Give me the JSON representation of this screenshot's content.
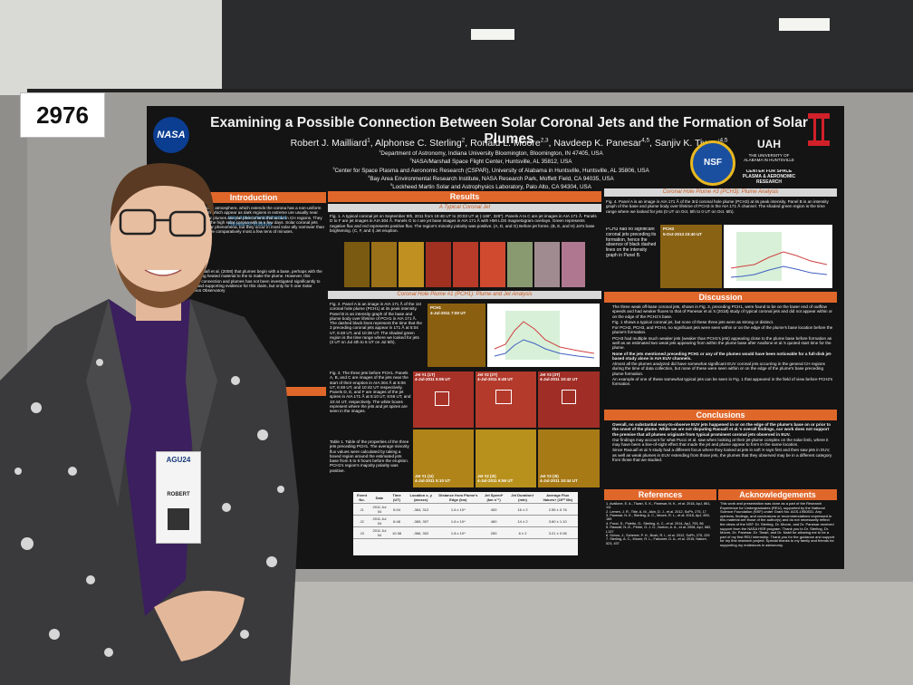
{
  "booth_number": "2976",
  "poster": {
    "title": "Examining a Possible Connection Between Solar Coronal Jets and the Formation of Solar Plumes",
    "authors": [
      {
        "name": "Robert J. Mailliard",
        "sup": "1"
      },
      {
        "name": "Alphonse C. Sterling",
        "sup": "2"
      },
      {
        "name": "Ronald L. Moore",
        "sup": "2,3"
      },
      {
        "name": "Navdeep K. Panesar",
        "sup": "4,5"
      },
      {
        "name": "Sanjiv K. Tiwari",
        "sup": "4,5"
      }
    ],
    "affiliations": [
      {
        "sup": "1",
        "text": "Department of Astronomy, Indiana University Bloomington, Bloomington, IN 47405, USA"
      },
      {
        "sup": "2",
        "text": "NASA/Marshall Space Flight Center, Huntsville, AL 35812, USA"
      },
      {
        "sup": "3",
        "text": "Center for Space Plasma and Aeronomic Research (CSPAR), University of Alabama in Huntsville, Huntsville, AL 35806, USA"
      },
      {
        "sup": "4",
        "text": "Bay Area Environmental Research Institute, NASA Research Park, Moffett Field, CA 94035, USA"
      },
      {
        "sup": "5",
        "text": "Lockheed Martin Solar and Astrophysics Laboratory, Palo Alto, CA 94304, USA"
      }
    ],
    "logos": {
      "nasa": "NASA",
      "baeri": "Bay Area Environmental Research Institute",
      "nsf": "NSF",
      "uah": "UAH",
      "uah_sub": "THE UNIVERSITY OF ALABAMA IN HUNTSVILLE",
      "cspar": "CENTER FOR SPACE PLASMA & AERONOMIC RESEARCH"
    },
    "introduction": {
      "heading": "Introduction",
      "text": "layer of the solar atmosphere, which extends the corona has a non-uniform structure which which appear as dark regions in extreme ure usually near the poles. Solar plumes are olar phenomena that occur in CH regions. They extending into the high solar corona with to a few days. Solar coronal jets are also ed solar phenomena, but they occur in most solar ally narrower than plumes and have comparatively most a few tens of minutes.",
      "text2": "ted by Raouafi et al. (2008) that plumes begin with a base, perhaps with the jet supplying heated material to the to make the plume. However, this proposed connection and plumes has not been investigated significantly to date. found supporting evidence for this claim, but only for h one Solar Dynamics Observatory"
    },
    "results": {
      "heading": "Results",
      "typical_jet": {
        "heading": "A Typical Coronal Jet",
        "caption": "Fig. 1. A typical coronal jet on September 8th, 2011 from 19:48 UT to 20:02 UT at (-166\", 326\"). Panels A to C are jet images in AIA 171 Å. Panels D to F are jet images in AIA 304 Å. Panels G to I are jet base images in AIA 171 Å with HMI LOS magnetogram overlays. Green represents negative flux and red represents positive flux. The region's minority polarity was positive. (A, D, and G) Before jet forms. (B, E, and H) Jet's base brightening. (C, F, and I) Jet eruption."
      },
      "pch1": {
        "heading": "Coronal Hole Plume #1 (PCH1): Plume and Jet Analysis",
        "fig2_caption": "Fig. 2. Panel A is an image in AIA 171 Å of the 1st coronal hole plume (PCH1) at its peak intensity. Panel B is an intensity graph of the base and plume body over lifetime of PCH1 in AIA 171 Å. The dashed black lines represent the time that the 3 preceding coronal jets appear in 171 Å at 5:04 UT, 6:48 UT, and 10:38 UT. The shaded green region is the time range where we looked for jets (3 UT on Jul 4th to 5 UT on Jul 5th).",
        "image_label": "PCH1",
        "image_time": "4-Jul-2011 7:00 UT",
        "fig3_caption": "Fig. 3. The three jets before PCH1. Panels A, B, and C are images of the jets near the start of their eruption in AIA 304 Å at 5:06 UT, 6:48 UT, and 10:42 UT respectively. Panels D, E, and F are images of the jet spires in AIA 171 Å at 5:10 UT, 6:56 UT, and 10:44 UT, respectively. The white boxes represent where the jets and jet spires are seen in the images.",
        "jet_panels": [
          {
            "label": "Jet #1 (1T)",
            "time": "4-Jul-2011 5:06 UT"
          },
          {
            "label": "Jet #2 (2T)",
            "time": "4-Jul-2011 6:48 UT"
          },
          {
            "label": "Jet #3 (3T)",
            "time": "4-Jul-2011 10:42 UT"
          },
          {
            "label": "Jet #1 (1I)",
            "time": "4-Jul-2011 5:10 UT"
          },
          {
            "label": "Jet #2 (2I)",
            "time": "4-Jul-2011 6:56 UT"
          },
          {
            "label": "Jet #3 (3I)",
            "time": "4-Jul-2011 10:44 UT"
          }
        ],
        "table1_caption": "Table 1. Table of the properties of the three jets preceding PCH1. The average minority flux values were calculated by taking a boxed region around the estimated jets base from 5 to 6 hours before the eruption. PCH1's region's majority polarity was positive.",
        "table": {
          "header": [
            "Event No.",
            "Date",
            "Time (UT)",
            "Location x, y (arcsec)",
            "Distance from Plume's Edge (km)",
            "Jet Speed* (km s⁻¹)",
            "Jet Duration† (min)",
            "Average Flux Values† (10¹⁰ Mx)"
          ],
          "rows": [
            [
              "J1",
              "2011 Jul 04",
              "5:04",
              "-364, 312",
              "1.6 x 10⁴",
              "400",
              "16 ± 2",
              "2.55 ± 0.76"
            ],
            [
              "J2",
              "2011 Jul 04",
              "6:48",
              "-365, 307",
              "1.6 x 10⁴",
              "460",
              "14 ± 2",
              "3.60 ± 1.10"
            ],
            [
              "J3",
              "2011 Jul 04",
              "10:38",
              "-366, 302",
              "1.8 x 10⁴",
              "250",
              "6 ± 2",
              "3.21 ± 0.96"
            ]
          ]
        }
      }
    },
    "pch3": {
      "heading": "Coronal Hole Plume #3 (PCH3): Plume Analysis",
      "caption": "Fig. 4. Panel A is an image in AIA 171 Å of the 3rd coronal hole plume (PCH3) at its peak intensity. Panel B is an intensity graph of the base and plume body over lifetime of PCH3 in the AIA 171 Å channel. The shaded green region is the time range where we looked for jets (0 UT on Oct. 5th to 0 UT on Oct. 6th).",
      "note": "PCH3 had no significant coronal jets preceding its formation, hence the absence of black dashed lines on the intensity graph in Panel B.",
      "image_label": "PCH3",
      "image_time": "5-Oct-2013 23:40 UT"
    },
    "discussion": {
      "heading": "Discussion",
      "items": [
        "The three weak off-base coronal jets, shown in Fig. 3, preceding PCH1, were found to be on the lower end of outflow speeds and had weaker fluxes to that of Panesar et al.'s (2018) study of typical coronal jets and did not appear within or on the edge of the PCH1's base.",
        "Fig. 1 shows a typical coronal jet, but none of these three jets were as strong or distinct.",
        "For PCH2, PCH3, and PCH4, no significant jets were seen within or on the edge of the plume's base location before the plume's formation.",
        "PCH3 had multiple much weaker jets (weaker than PCH1's jets) appearing close to the plume base before formation as well as an estimated two weak jets appearing from within the plume base after Avallone et al.'s quoted start time for the plume.",
        "None of the jets mentioned preceding PCH1 or any of the plumes would have been noticeable for a full-disk jet-based study alone in AIA EUV channels.",
        "Almost all the plumes analyzed did have somewhat significant EUV coronal jets occurring in the general CH regions during the time of data collection, but none of these were seen within or on the edge of the plume's base preceding plume formation.",
        "An example of one of these somewhat typical jets can be seen in Fig. 1 that appeared in the field of view before PCH2's formation."
      ]
    },
    "conclusions": {
      "heading": "Conclusions",
      "items": [
        "Overall, no substantial easy-to-observe EUV jets happened in or on the edge of the plume's base on or prior to the onset of the plume. While we are not disputing Raouafi et al.'s overall findings, our work does not support the premise that all plumes originate from typical prominent coronal jets observed in EUV.",
        "Our findings may account for what Pucci et al. saw when looking at their jet-plume complex on the solar limb, where it may have been a line-of-sight effect that made the jet and plume appear to form in the same location.",
        "Since Raouafi et al.'s study had a different focus where they looked at jets in soft X-rays first and then saw jets in EUV, as well as weak plumes in EUV extending from those jets, the plumes that they observed may be in a different category from those that we studied."
      ]
    },
    "references": {
      "heading": "References",
      "items": [
        "1. Avallone, E. A., Tiwari, S. K., Panesar, N. K., et al. 2018, ApJ, 861, 111",
        "2. Lemen, J. R., Title, A. M., Akin, D. J., et al. 2012, SoPh, 275, 17",
        "3. Panesar, N. K., Sterling, A. C., Moore, R. L., et al. 2018, ApJ, 853, 189",
        "4. Pucci, S., Poletto, G., Sterling, A. C., et al. 2014, ApJ, 793, 86",
        "5. Raouafi, N.-E., Petrie, G. J. D., Norton, A. A., et al. 2008, ApJ, 682, L137",
        "6. Schou, J., Scherrer, P. H., Bush, R. I., et al. 2012, SoPh, 275, 229",
        "7. Sterling, A. C., Moore, R. L., Falconer, D. A., et al. 2015, Nature, 523, 437"
      ]
    },
    "acknowledgements": {
      "heading": "Acknowledgements",
      "text": "This work and presentation was done as a part of the Research Experience for Undergraduates (REU), supported by the National Science Foundation (NSF) under Grant No. AGS-1950831. Any opinions, findings, and conclusions or recommendations expressed in this material are those of the author(s) and do not necessarily reflect the views of the NSF. Dr. Sterling, Dr. Moore, and Dr. Panesar received support from the NASA HSR program. Thank you to Dr. Sterling, Dr. Moore, Dr. Panesar, Dr. Tiwari, and Dr. Nabil for allowing me to be a part of my first REU internship. Thank you for the guidance and support for my first research project. Special thanks to my family and friends for supporting my endeavors in astronomy."
    }
  },
  "badge": {
    "event": "AGU24",
    "name": "ROBERT"
  }
}
